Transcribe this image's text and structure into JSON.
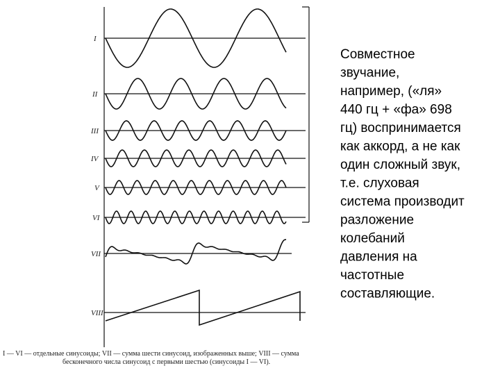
{
  "figure": {
    "wave_labels": [
      "I",
      "II",
      "III",
      "IV",
      "V",
      "VI",
      "VII",
      "VIII"
    ],
    "caption": [
      "I — VI — отдельные синусоиды; VII — сумма шести синусоид, изображенных выше; VIII — сумма",
      "бесконечного числа синусоид с первыми шестью (синусоиды I — VI)."
    ]
  },
  "text": {
    "lines": [
      "Совместное",
      "звучание,",
      "например, («ля»",
      "440 гц + «фа» 698",
      "гц) воспринимается",
      "как аккорд, а не как",
      "один сложный звук,",
      "т.е. слуховая",
      "система производит",
      "разложение",
      "колебаний",
      "давления на",
      "частотные",
      "составляющие."
    ]
  }
}
